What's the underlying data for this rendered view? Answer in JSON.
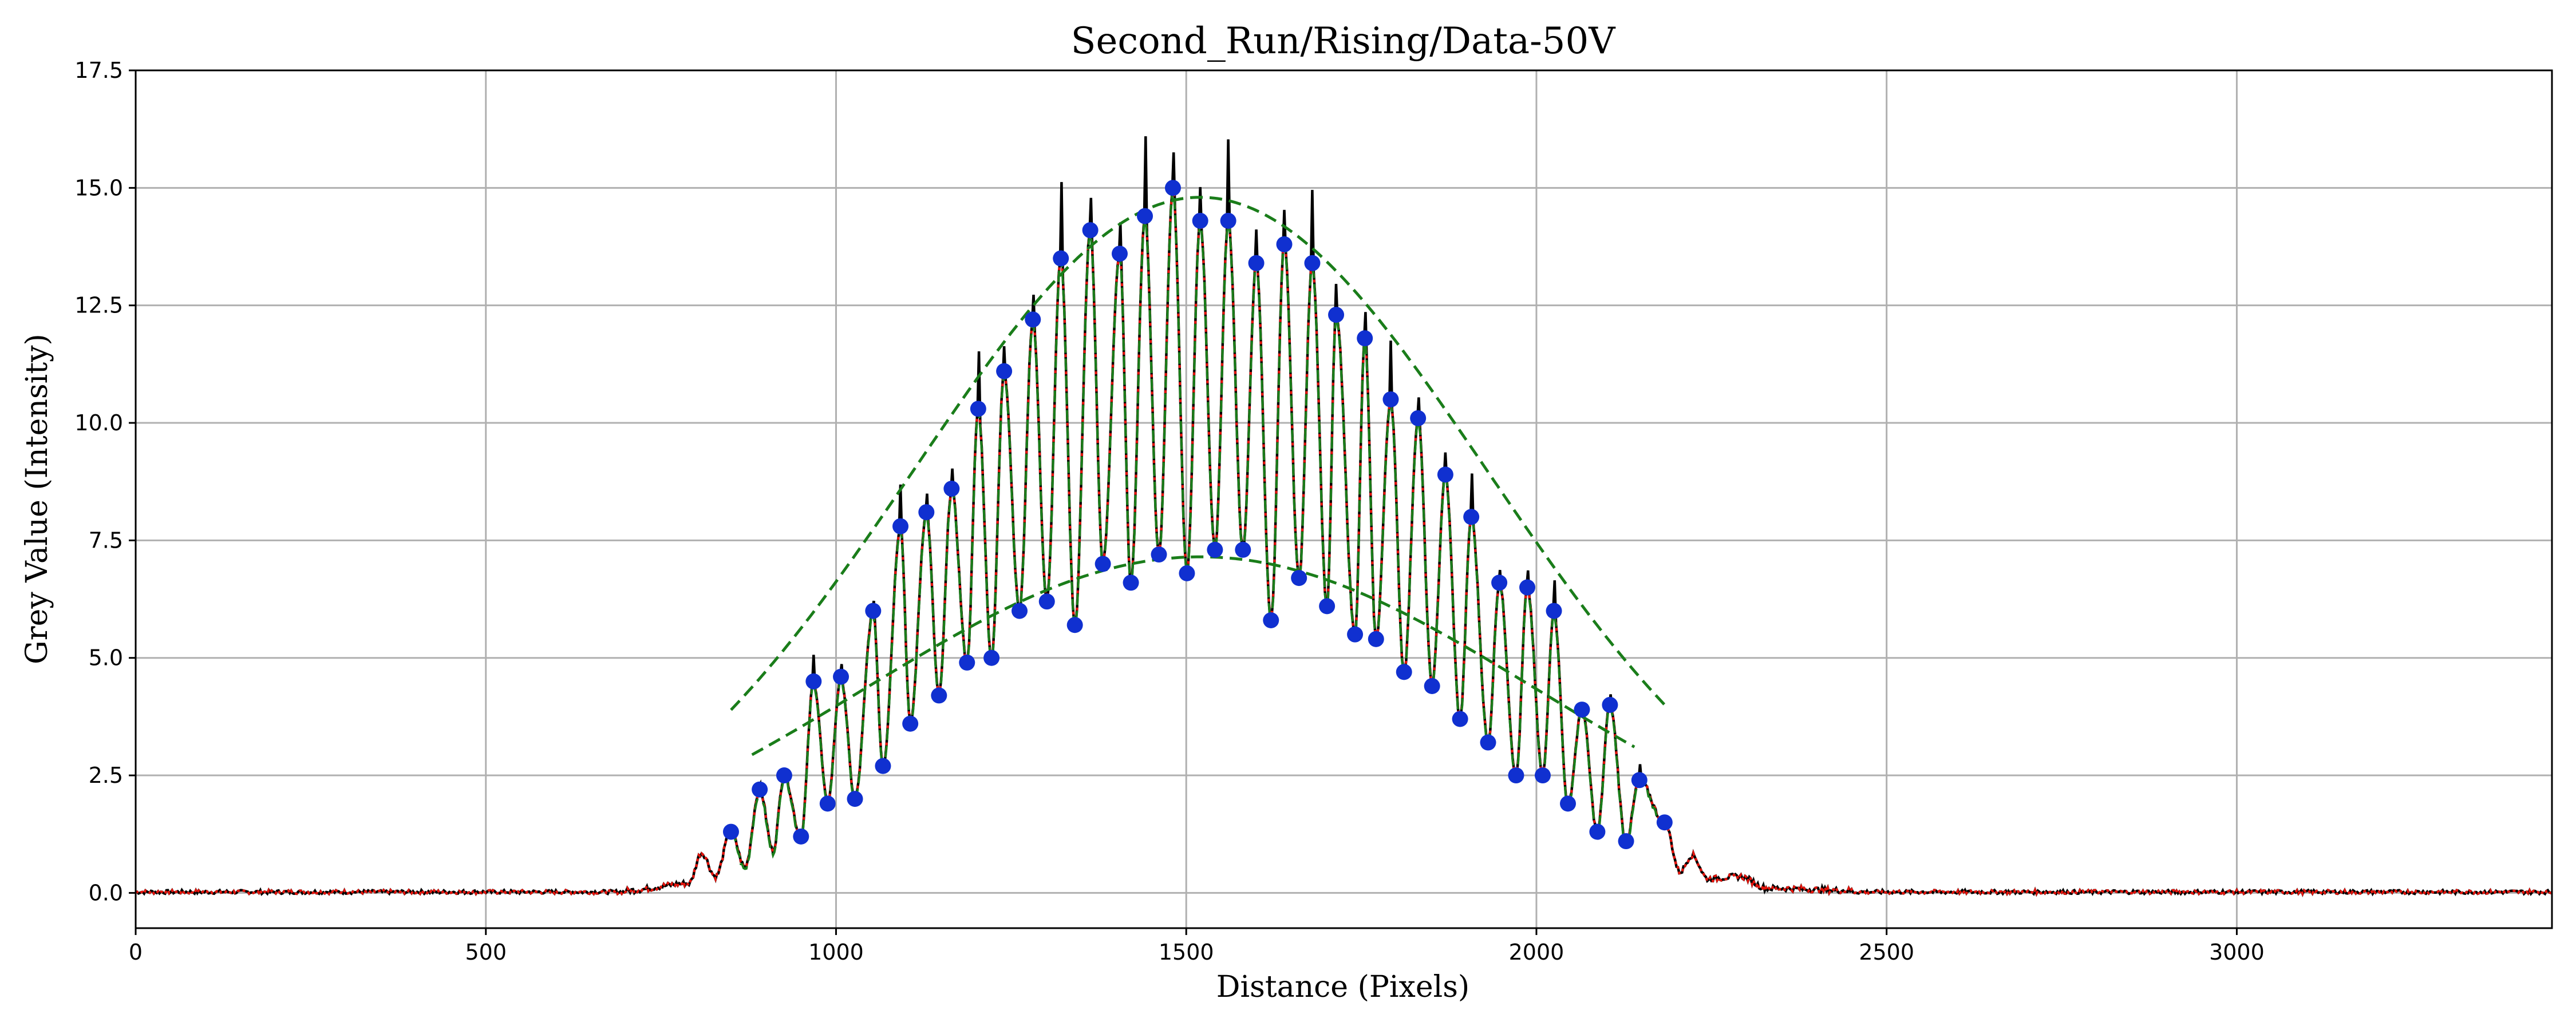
{
  "chart_data": {
    "type": "line",
    "title": "Second_Run/Rising/Data-50V",
    "xlabel": "Distance (Pixels)",
    "ylabel": "Grey Value (Intensity)",
    "xlim": [
      0,
      3450
    ],
    "ylim": [
      -0.75,
      17.5
    ],
    "xticks": [
      0,
      500,
      1000,
      1500,
      2000,
      2500,
      3000
    ],
    "xtick_labels": [
      "0",
      "500",
      "1000",
      "1500",
      "2000",
      "2500",
      "3000"
    ],
    "yticks": [
      0.0,
      2.5,
      5.0,
      7.5,
      10.0,
      12.5,
      15.0,
      17.5
    ],
    "ytick_labels": [
      "0.0",
      "2.5",
      "5.0",
      "7.5",
      "10.0",
      "12.5",
      "15.0",
      "17.5"
    ],
    "grid": true,
    "legend": "none",
    "series": [
      {
        "style": "black solid line",
        "color": "#000000",
        "description_points": "raw intensity profile"
      },
      {
        "style": "red dotted line",
        "color": "#e8140c"
      },
      {
        "style": "green dashed fit",
        "color": "#1a7d1a"
      },
      {
        "style": "blue markers",
        "color": "#1030d0"
      }
    ],
    "maxima": {
      "x": [
        850,
        891,
        926,
        968,
        1007,
        1053,
        1092,
        1129,
        1165,
        1203,
        1240,
        1281,
        1321,
        1363,
        1405,
        1441,
        1481,
        1520,
        1560,
        1600,
        1640,
        1680,
        1714,
        1755,
        1792,
        1831,
        1870,
        1907,
        1947,
        1987,
        2025,
        2065,
        2105,
        2147,
        2183
      ],
      "y": [
        1.3,
        2.2,
        2.5,
        4.5,
        4.6,
        6.0,
        7.8,
        8.1,
        8.6,
        10.3,
        11.1,
        12.2,
        13.5,
        14.1,
        13.6,
        14.4,
        15.0,
        14.3,
        14.3,
        13.4,
        13.8,
        13.4,
        12.3,
        11.8,
        10.5,
        10.1,
        8.9,
        8.0,
        6.6,
        6.5,
        6.0,
        3.9,
        4.0,
        2.4,
        1.5
      ]
    },
    "minima": {
      "x": [
        950,
        988,
        1027,
        1067,
        1106,
        1147,
        1187,
        1222,
        1262,
        1301,
        1341,
        1381,
        1421,
        1461,
        1501,
        1541,
        1581,
        1621,
        1661,
        1701,
        1741,
        1771,
        1811,
        1851,
        1891,
        1931,
        1971,
        2009,
        2045,
        2087,
        2128
      ],
      "y": [
        1.2,
        1.9,
        2.0,
        2.7,
        3.6,
        4.2,
        4.9,
        5.0,
        6.0,
        6.2,
        5.7,
        7.0,
        6.6,
        7.2,
        6.8,
        7.3,
        7.3,
        5.8,
        6.7,
        6.1,
        5.5,
        5.4,
        4.7,
        4.4,
        3.7,
        3.2,
        2.5,
        2.5,
        1.9,
        1.3,
        1.1
      ]
    },
    "upper_envelope": {
      "center": 1520,
      "amplitude": 14.8,
      "sigma": 410,
      "x_range": [
        850,
        2185
      ]
    },
    "lower_envelope": {
      "center": 1520,
      "amplitude": 7.15,
      "sigma": 480,
      "x_range": [
        880,
        2140
      ]
    }
  }
}
